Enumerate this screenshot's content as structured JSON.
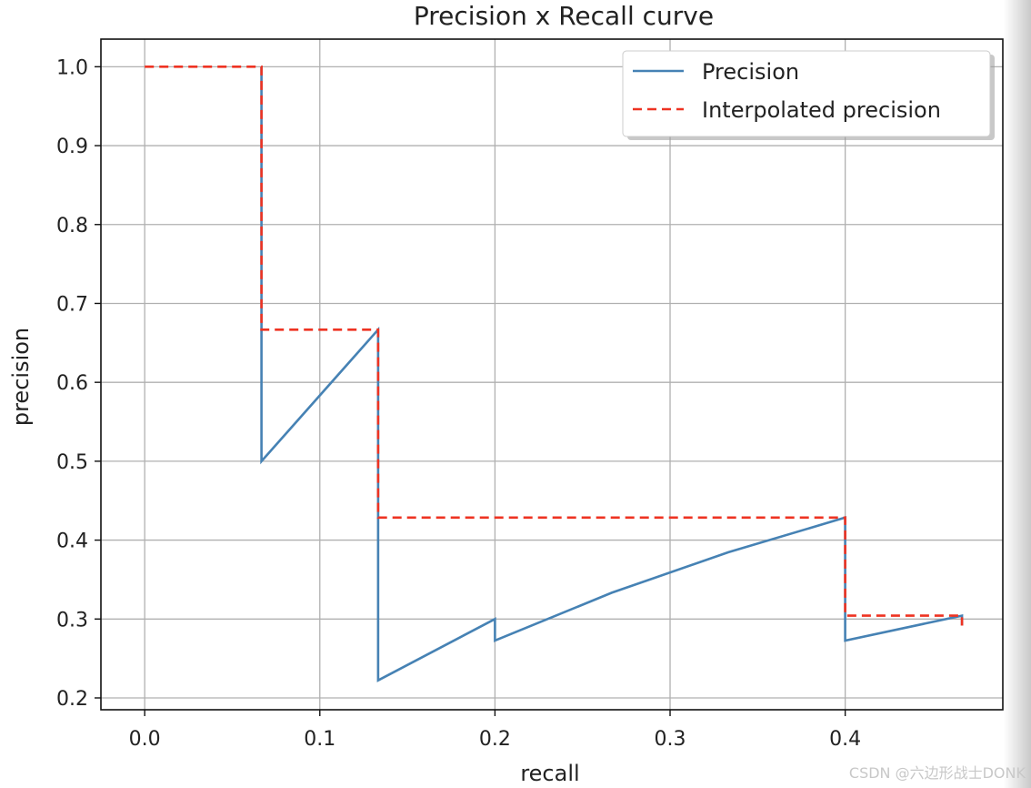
{
  "chart_data": {
    "type": "line",
    "title": "Precision x Recall curve",
    "xlabel": "recall",
    "ylabel": "precision",
    "xlim": [
      -0.025,
      0.49
    ],
    "ylim": [
      0.185,
      1.035
    ],
    "xticks": [
      0.0,
      0.1,
      0.2,
      0.3,
      0.4
    ],
    "xtick_labels": [
      "0.0",
      "0.1",
      "0.2",
      "0.3",
      "0.4"
    ],
    "yticks": [
      0.2,
      0.3,
      0.4,
      0.5,
      0.6,
      0.7,
      0.8,
      0.9,
      1.0
    ],
    "ytick_labels": [
      "0.2",
      "0.3",
      "0.4",
      "0.5",
      "0.6",
      "0.7",
      "0.8",
      "0.9",
      "1.0"
    ],
    "grid": true,
    "legend_position": "upper right",
    "series": [
      {
        "name": "Precision",
        "color": "#4682b4",
        "style": "solid",
        "x": [
          0.0667,
          0.0667,
          0.0667,
          0.1333,
          0.1333,
          0.1333,
          0.2,
          0.2,
          0.2667,
          0.3333,
          0.4,
          0.4,
          0.4667,
          0.4667
        ],
        "y": [
          1.0,
          1.0,
          0.5,
          0.6667,
          0.6667,
          0.2222,
          0.3,
          0.2727,
          0.3333,
          0.3846,
          0.4286,
          0.2727,
          0.3043,
          0.2917
        ]
      },
      {
        "name": "Interpolated precision",
        "color": "#ee3322",
        "style": "dashed",
        "x": [
          0.0,
          0.0667,
          0.0667,
          0.1333,
          0.1333,
          0.4,
          0.4,
          0.4667,
          0.4667
        ],
        "y": [
          1.0,
          1.0,
          0.6667,
          0.6667,
          0.4286,
          0.4286,
          0.3043,
          0.3043,
          0.2917
        ]
      }
    ]
  },
  "watermark": "CSDN @六边形战士DONK"
}
